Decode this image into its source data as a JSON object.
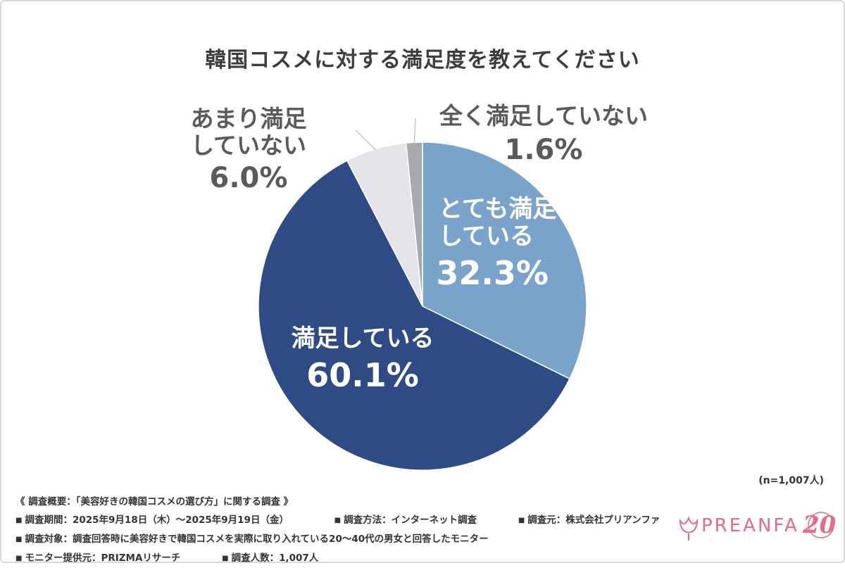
{
  "chart_data": {
    "type": "pie",
    "title": "韓国コスメに対する満足度を教えてください",
    "slices": [
      {
        "label_lines": [
          "とても満足",
          "している"
        ],
        "value": 32.3,
        "value_text": "32.3%",
        "color": "#7aa3cc"
      },
      {
        "label_lines": [
          "満足している"
        ],
        "value": 60.1,
        "value_text": "60.1%",
        "color": "#2f4b86"
      },
      {
        "label_lines": [
          "あまり満足",
          "していない"
        ],
        "value": 6.0,
        "value_text": "6.0%",
        "color": "#e4e4ea"
      },
      {
        "label_lines": [
          "全く満足していない"
        ],
        "value": 1.6,
        "value_text": "1.6%",
        "color": "#a9a9ad"
      }
    ],
    "start": "12 o'clock",
    "direction": "clockwise"
  },
  "n_note": "(n=1,007人)",
  "footer": {
    "heading": "《 調査概要：「美容好きの韓国コスメの選び方」に関する調査 》",
    "period": "調査期間：2025年9月18日（木）～2025年9月19日（金）",
    "method": "調査方法：インターネット調査",
    "source": "調査元：株式会社プリアンファ",
    "target": "調査対象：調査回答時に美容好きで韓国コスメを実際に取り入れている20～40代の男女と回答したモニター",
    "provider": "モニター提供元：PRIZMAリサーチ",
    "count": "調査人数：1,007人",
    "bullet": "■"
  },
  "logo": {
    "text": "PREANFA",
    "badge": "20",
    "brand_color": "#e56b86"
  }
}
